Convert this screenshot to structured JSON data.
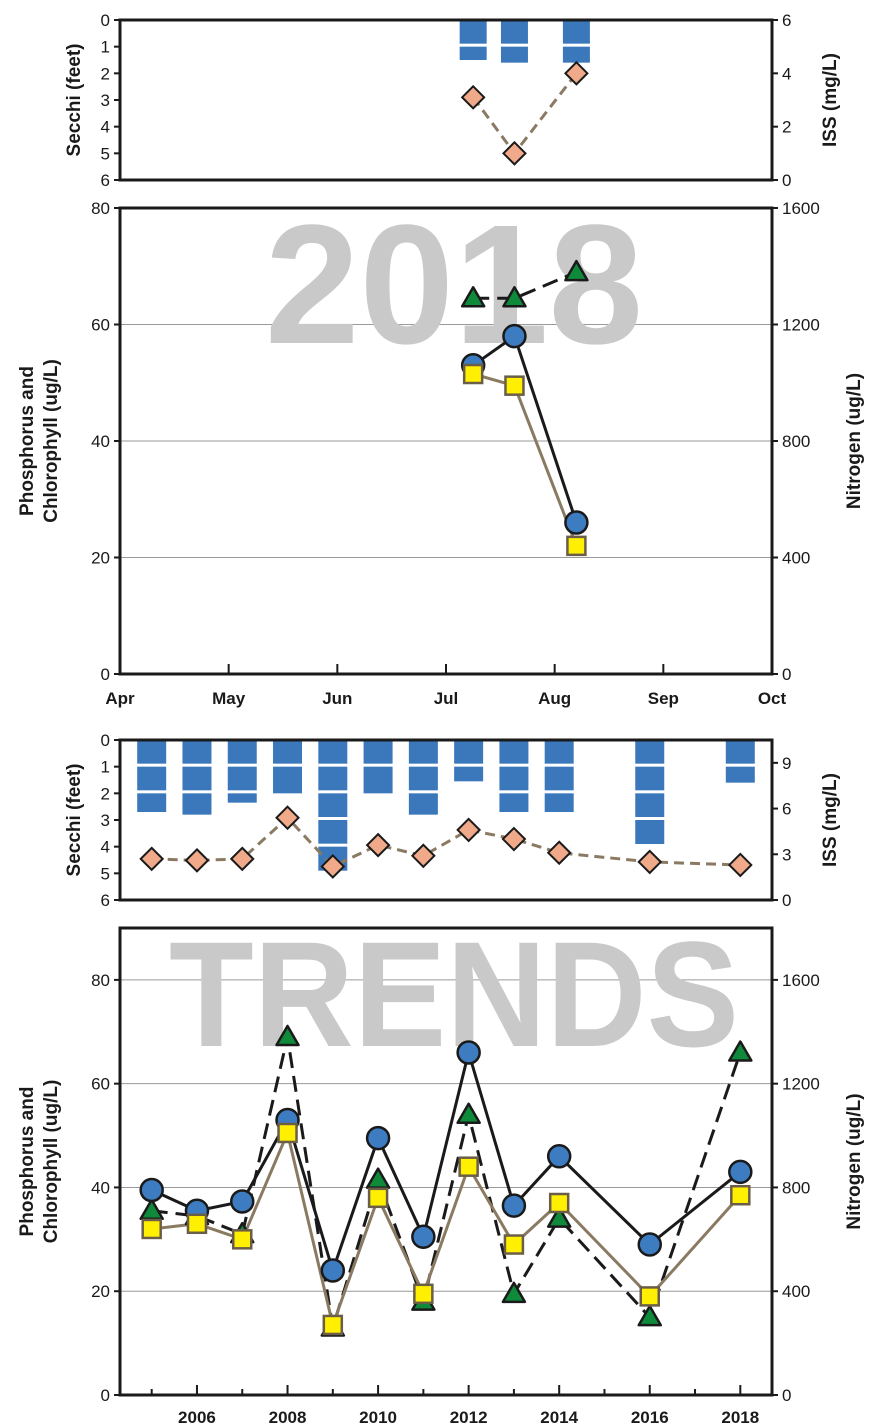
{
  "colors": {
    "secchi": "#3b78bb",
    "iss": "#f0aa8a",
    "iss_line": "#8b7a62",
    "phosphorus": "#3e7cc2",
    "chlorophyll": "#ffef00",
    "chlorophyll_line": "#8b7a62",
    "nitrogen": "#0f8a3b",
    "grid": "#9a9a9a",
    "watermark": "#c9c9c9"
  },
  "chart_data": [
    {
      "id": "secchi2018",
      "type": "bar",
      "ylabel": "Secchi (feet)",
      "y2label": "ISS (mg/L)",
      "ylim": [
        0,
        6
      ],
      "y2lim": [
        0,
        6
      ],
      "y_ticks": [
        "0",
        "1",
        "2",
        "3",
        "4",
        "5",
        "6"
      ],
      "y2_ticks": [
        "0",
        "2",
        "4",
        "6"
      ],
      "x_domain": [
        0,
        6
      ],
      "secchi": {
        "x": [
          3.25,
          3.63,
          4.2
        ],
        "values": [
          1.5,
          1.6,
          1.6
        ]
      },
      "iss": {
        "x": [
          3.25,
          3.63,
          4.2
        ],
        "values": [
          3.1,
          1.0,
          4.0
        ]
      }
    },
    {
      "id": "nutrients2018",
      "type": "line",
      "watermark": "2018",
      "ylabel_lines": [
        "Phosphorus and",
        "Chlorophyll (ug/L)"
      ],
      "y2label": "Nitrogen (ug/L)",
      "ylim": [
        0,
        80
      ],
      "y2lim": [
        0,
        1600
      ],
      "y_ticks": [
        "0",
        "20",
        "40",
        "60",
        "80"
      ],
      "y2_ticks": [
        "0",
        "400",
        "800",
        "1200",
        "1600"
      ],
      "x_domain": [
        0,
        6
      ],
      "x_tick_labels": [
        "Apr",
        "May",
        "Jun",
        "Jul",
        "Aug",
        "Sep",
        "Oct"
      ],
      "x": [
        3.25,
        3.63,
        4.2
      ],
      "series": [
        {
          "key": "phosphorus",
          "values": [
            53,
            58,
            26
          ]
        },
        {
          "key": "chlorophyll",
          "values": [
            51.5,
            49.5,
            22
          ]
        },
        {
          "key": "nitrogen",
          "values": [
            1290,
            1290,
            1380
          ]
        }
      ]
    },
    {
      "id": "secchiTrends",
      "type": "bar",
      "ylabel": "Secchi (feet)",
      "y2label": "ISS (mg/L)",
      "ylim": [
        0,
        6
      ],
      "y2lim": [
        0,
        10.5
      ],
      "y_ticks": [
        "0",
        "1",
        "2",
        "3",
        "4",
        "5",
        "6"
      ],
      "y2_ticks": [
        "0",
        "3",
        "6",
        "9"
      ],
      "x_domain": [
        2004.3,
        2018.7
      ],
      "secchi": {
        "x": [
          2005,
          2006,
          2007,
          2008,
          2009,
          2010,
          2011,
          2012,
          2013,
          2014,
          2016,
          2018
        ],
        "values": [
          2.7,
          2.8,
          2.35,
          2.0,
          4.9,
          2.0,
          2.8,
          1.55,
          2.7,
          2.7,
          3.9,
          1.6
        ]
      },
      "iss": {
        "x": [
          2005,
          2006,
          2007,
          2008,
          2009,
          2010,
          2011,
          2012,
          2013,
          2014,
          2016,
          2018
        ],
        "values": [
          2.7,
          2.6,
          2.7,
          5.4,
          2.2,
          3.6,
          2.9,
          4.6,
          4.0,
          3.1,
          2.5,
          2.3
        ]
      }
    },
    {
      "id": "nutrientsTrends",
      "type": "line",
      "watermark": "TRENDS",
      "ylabel_lines": [
        "Phosphorus and",
        "Chlorophyll (ug/L)"
      ],
      "y2label": "Nitrogen (ug/L)",
      "ylim": [
        0,
        90
      ],
      "y2lim": [
        0,
        1800
      ],
      "y_ticks": [
        "0",
        "20",
        "40",
        "60",
        "80"
      ],
      "y2_ticks": [
        "0",
        "400",
        "800",
        "1200",
        "1600"
      ],
      "x_domain": [
        2004.3,
        2018.7
      ],
      "x_tick_labels": [
        "2006",
        "2008",
        "2010",
        "2012",
        "2014",
        "2016",
        "2018"
      ],
      "x_ticks": [
        2006,
        2008,
        2010,
        2012,
        2014,
        2016,
        2018
      ],
      "x_minor_ticks": [
        2005,
        2007,
        2009,
        2011,
        2013,
        2015,
        2017
      ],
      "x": [
        2005,
        2006,
        2007,
        2008,
        2009,
        2010,
        2011,
        2012,
        2013,
        2014,
        2016,
        2018
      ],
      "series": [
        {
          "key": "phosphorus",
          "values": [
            39.5,
            35.5,
            37.3,
            53,
            24,
            49.5,
            30.5,
            66,
            36.5,
            46,
            29,
            43
          ]
        },
        {
          "key": "chlorophyll",
          "values": [
            32,
            33,
            30,
            50.5,
            13.5,
            38,
            19.5,
            44,
            29,
            37,
            19,
            38.5
          ]
        },
        {
          "key": "nitrogen",
          "values": [
            710,
            690,
            620,
            1380,
            260,
            830,
            360,
            1080,
            390,
            680,
            300,
            1320
          ]
        }
      ]
    }
  ]
}
